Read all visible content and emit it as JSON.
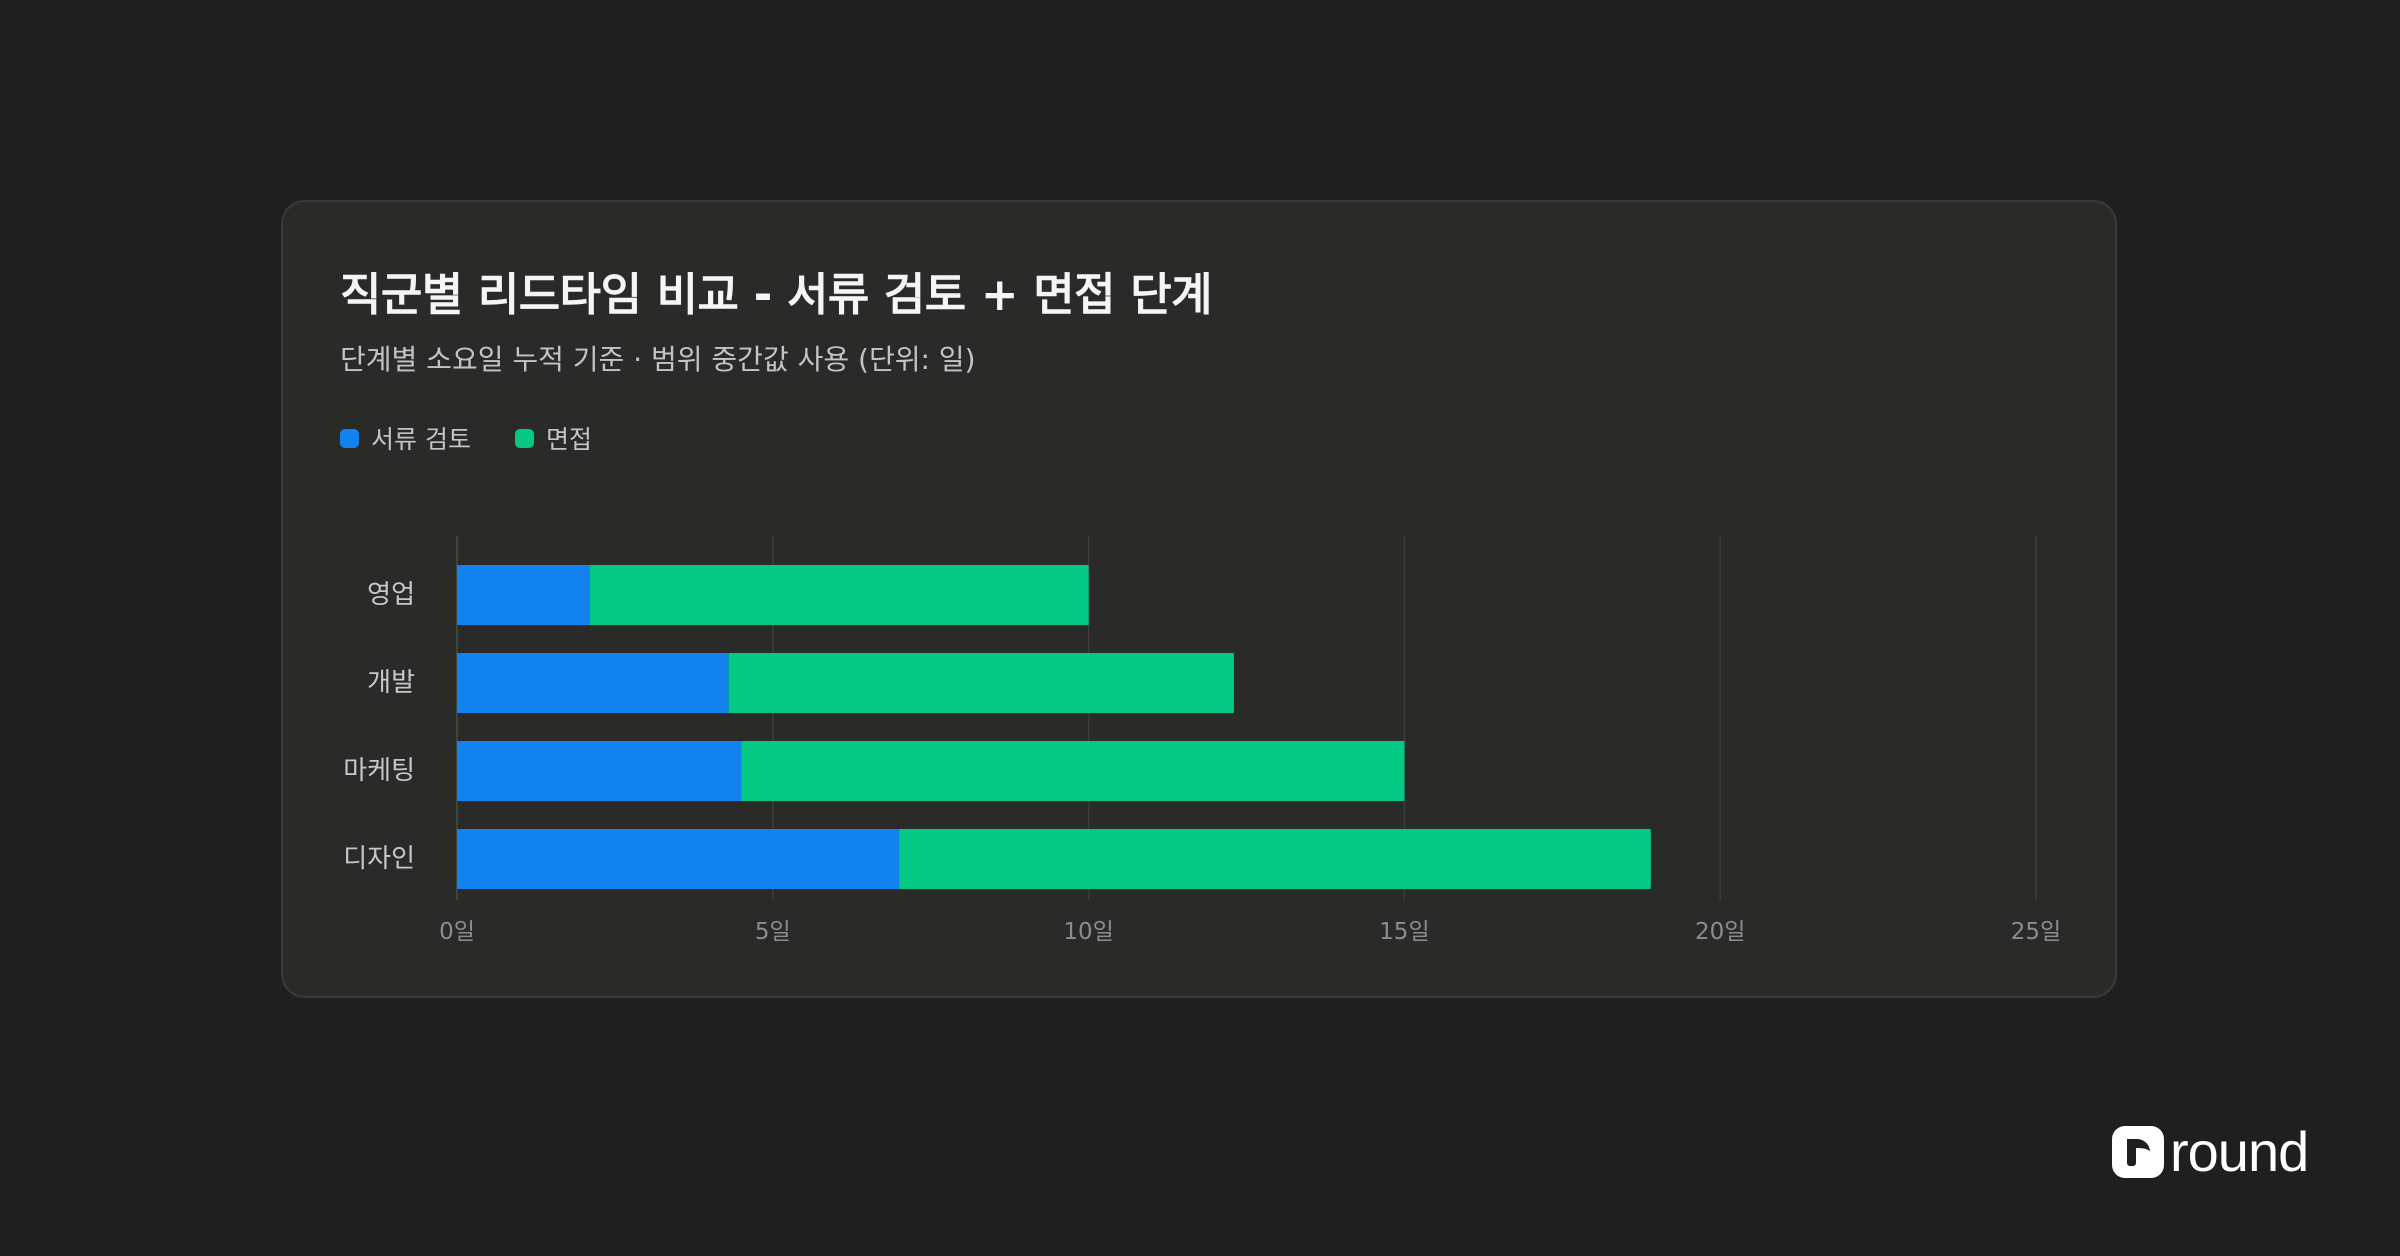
{
  "chart_data": {
    "type": "bar",
    "orientation": "horizontal",
    "stacked": true,
    "title": "직군별 리드타임 비교 - 서류 검토 + 면접 단계",
    "subtitle": "단계별 소요일 누적 기준 · 범위 중간값 사용 (단위: 일)",
    "categories": [
      "영업",
      "개발",
      "마케팅",
      "디자인"
    ],
    "series": [
      {
        "name": "서류 검토",
        "color": "#1282ee",
        "values": [
          2.1,
          4.3,
          4.5,
          7.0
        ]
      },
      {
        "name": "면접",
        "color": "#03c985",
        "values": [
          7.9,
          8.0,
          10.5,
          11.9
        ]
      }
    ],
    "xlim": [
      0,
      25
    ],
    "xticks": [
      0,
      5,
      10,
      15,
      20,
      25
    ],
    "tick_labels": [
      "0일",
      "5일",
      "10일",
      "15일",
      "20일",
      "25일"
    ],
    "grid": true,
    "legend_position": "top-left"
  },
  "brand": {
    "name": "round"
  }
}
